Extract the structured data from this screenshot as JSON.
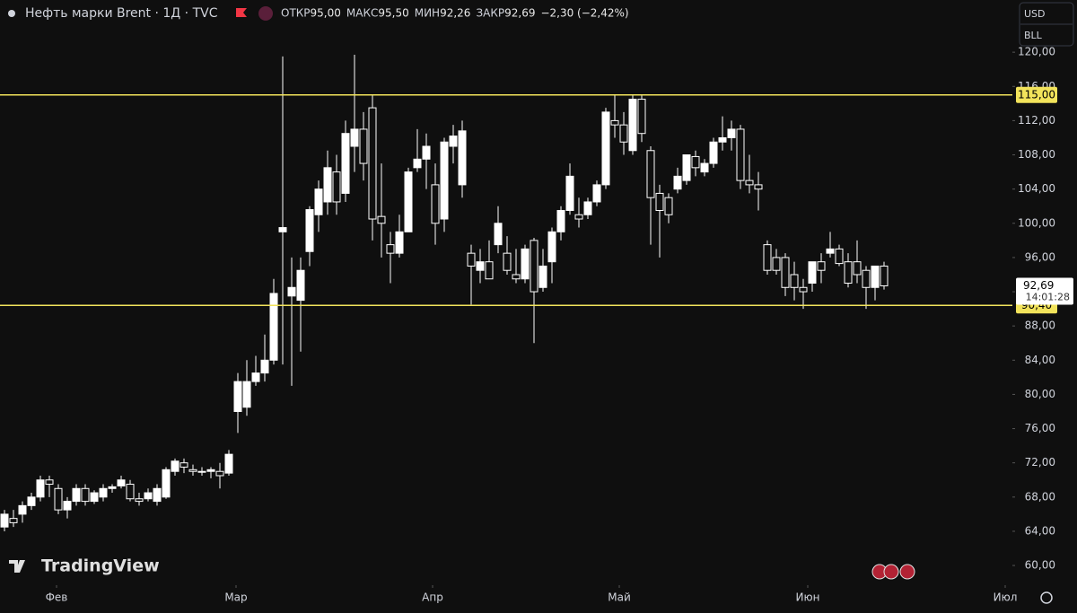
{
  "chart_data": {
    "type": "candlestick",
    "title": "Нефть марки Brent · 1Д · TVC",
    "header_stats": [
      {
        "label": "ОТКР",
        "value": "95,00"
      },
      {
        "label": "МАКС",
        "value": "95,50"
      },
      {
        "label": "МИН",
        "value": "92,26"
      },
      {
        "label": "ЗАКР",
        "value": "92,69"
      }
    ],
    "change": "−2,30 (−2,42%)",
    "currency": "USD",
    "unit": "BLL",
    "brand": "TradingView",
    "up_color": "#ffffff",
    "down_color": "#0f0f0f",
    "wick_color": "#ffffff",
    "open": [
      64.5,
      65.5,
      66,
      67,
      68,
      70,
      69,
      66.5,
      67.5,
      69,
      67.5,
      68,
      69,
      69.3,
      69.5,
      67.8,
      67.8,
      67.5,
      68,
      71,
      72,
      71.2,
      71,
      71,
      71,
      70.8,
      78,
      78.5,
      81.5,
      82.5,
      84,
      99,
      91.5,
      91,
      96.7,
      101,
      102.5,
      106,
      103.5,
      109,
      111,
      113.5,
      100.8,
      97.5,
      96.5,
      99,
      106.5,
      107.5,
      104.5,
      100.5,
      109,
      104.5,
      96.5,
      94.5,
      95.5,
      97.5,
      96.5,
      94,
      93.5,
      98,
      92.5,
      95.5,
      99,
      101.5,
      101,
      101,
      102.5,
      104.5,
      112,
      111.5,
      108.5,
      114.5,
      108.5,
      103.5,
      103,
      104,
      105,
      107.8,
      106,
      107,
      109.5,
      110,
      111,
      105,
      104.5,
      97.5,
      96,
      96,
      94,
      92.5,
      93,
      95.5,
      96.5,
      97,
      95.5,
      95.5,
      94.5,
      92.5,
      95
    ],
    "high": [
      66.5,
      66.5,
      67.5,
      68.5,
      70.5,
      70.5,
      69.5,
      68,
      69.5,
      69.5,
      68.8,
      69.5,
      69.5,
      70.5,
      70,
      68.5,
      69,
      69.5,
      71.5,
      72.5,
      72.5,
      71.8,
      71.5,
      71.5,
      72,
      73.5,
      82.5,
      84,
      84.5,
      87,
      93.5,
      119.5,
      96,
      96,
      102,
      105,
      108.5,
      108,
      112,
      119.7,
      113,
      115,
      107,
      99,
      101,
      106.5,
      111,
      110.5,
      107,
      110,
      111.5,
      112,
      97.5,
      97,
      98,
      102,
      98.5,
      97,
      97.5,
      98.3,
      97,
      99.5,
      102,
      107,
      103,
      103,
      105,
      113.5,
      115,
      113,
      115,
      115,
      109,
      104.5,
      103.5,
      106.5,
      108,
      108.5,
      107.5,
      110,
      112.5,
      112,
      111.5,
      108,
      106,
      98,
      97,
      96.5,
      95.5,
      93.5,
      95.5,
      96.5,
      99,
      97.5,
      96.5,
      98,
      95,
      95,
      95.5
    ],
    "low": [
      64,
      64.5,
      65,
      66.5,
      67.5,
      68,
      66,
      65.5,
      67,
      67,
      67.2,
      67.5,
      68.5,
      69,
      67.5,
      67,
      67.5,
      67,
      67.8,
      70.5,
      70.8,
      70.5,
      70.5,
      70.2,
      69,
      70.5,
      75.5,
      77.5,
      81,
      81.5,
      83.5,
      83.5,
      81,
      85,
      95,
      99,
      101,
      101,
      102.5,
      106,
      105,
      98,
      96,
      93,
      96,
      99,
      106,
      104,
      97.5,
      99,
      107,
      103,
      90.5,
      93,
      93.5,
      96.5,
      94,
      93,
      93,
      86,
      92,
      93,
      98,
      101,
      99.5,
      100.5,
      102,
      104,
      110,
      108,
      108,
      109.5,
      97.5,
      96,
      100,
      103.5,
      104.5,
      105.5,
      105.5,
      106.5,
      108.5,
      108.5,
      104,
      103.5,
      101.5,
      94,
      94,
      91.5,
      91,
      90,
      92,
      93,
      96,
      95,
      92.5,
      93,
      90,
      91,
      92.26
    ],
    "close": [
      66,
      65,
      67,
      68,
      70,
      69.5,
      66.5,
      67.5,
      69,
      67.5,
      68.5,
      69,
      69.2,
      70,
      67.8,
      67.5,
      68.5,
      69,
      71.2,
      72.2,
      71.5,
      71,
      70.9,
      71.2,
      70.5,
      73,
      81.5,
      81.5,
      82.5,
      84,
      91.8,
      99.5,
      92.5,
      94.5,
      101.6,
      104,
      106.5,
      102.5,
      110.5,
      111,
      107,
      100.5,
      100,
      96.5,
      99,
      106,
      107.5,
      109,
      100,
      109.5,
      110.2,
      110.8,
      95,
      95.5,
      93.5,
      100,
      94.5,
      93.5,
      97,
      92,
      95,
      99,
      101.5,
      105.5,
      100.5,
      102.5,
      104.5,
      113,
      111.5,
      109.5,
      114.5,
      110.5,
      103,
      101.5,
      101,
      105.5,
      108,
      106.5,
      107,
      109.5,
      110,
      111,
      105,
      104.5,
      104,
      94.5,
      94.5,
      92.5,
      92.5,
      92,
      95.5,
      94.5,
      97,
      95.3,
      93,
      94,
      92.5,
      95,
      92.69
    ],
    "xlim": [
      -0.5,
      112.3
    ],
    "xticks": [
      {
        "value": 5.8,
        "label": "Фев"
      },
      {
        "value": 25.8,
        "label": "Мар"
      },
      {
        "value": 47.7,
        "label": "Апр"
      },
      {
        "value": 68.5,
        "label": "Май"
      },
      {
        "value": 89.5,
        "label": "Июн"
      },
      {
        "value": 111.5,
        "label": "Июл"
      }
    ],
    "ylim": [
      57.7,
      126.1
    ],
    "yticks": [
      {
        "value": 60,
        "label": "60,00"
      },
      {
        "value": 64,
        "label": "64,00"
      },
      {
        "value": 68,
        "label": "68,00"
      },
      {
        "value": 72,
        "label": "72,00"
      },
      {
        "value": 76,
        "label": "76,00"
      },
      {
        "value": 80,
        "label": "80,00"
      },
      {
        "value": 84,
        "label": "84,00"
      },
      {
        "value": 88,
        "label": "88,00"
      },
      {
        "value": 92,
        "label": "92,00"
      },
      {
        "value": 96,
        "label": "96,00"
      },
      {
        "value": 100,
        "label": "100,00"
      },
      {
        "value": 104,
        "label": "104,00"
      },
      {
        "value": 108,
        "label": "108,00"
      },
      {
        "value": 112,
        "label": "112,00"
      },
      {
        "value": 116,
        "label": "116,00"
      },
      {
        "value": 120,
        "label": "120,00"
      }
    ],
    "hlines": [
      {
        "value": 115,
        "label": "115,00",
        "color": "#f2e35b"
      },
      {
        "value": 90.4,
        "label": "90,40",
        "color": "#f2e35b"
      }
    ],
    "last_price": {
      "value": 92.69,
      "label": "92,69",
      "time": "14:01:28"
    }
  }
}
